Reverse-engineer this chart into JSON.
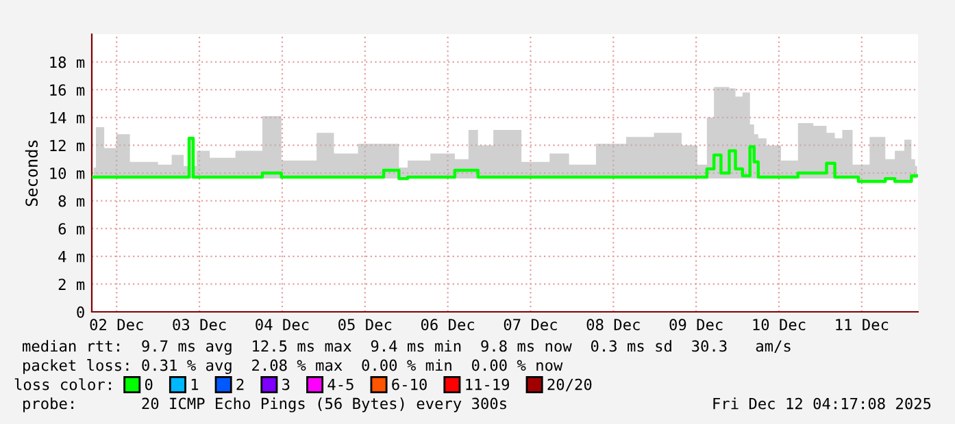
{
  "chart_data": {
    "type": "line",
    "ylabel": "Seconds",
    "legend_title": "loss color:",
    "legend": "bottom",
    "grid": true,
    "xlim": [
      "2025-12-02T04:48",
      "2025-12-12T04:19"
    ],
    "ylim": [
      0,
      20
    ],
    "xticks": [
      {
        "value": "2025-12-02T12:00",
        "label": "02 Dec"
      },
      {
        "value": "2025-12-03T12:00",
        "label": "03 Dec"
      },
      {
        "value": "2025-12-04T12:00",
        "label": "04 Dec"
      },
      {
        "value": "2025-12-05T12:00",
        "label": "05 Dec"
      },
      {
        "value": "2025-12-06T12:00",
        "label": "06 Dec"
      },
      {
        "value": "2025-12-07T12:00",
        "label": "07 Dec"
      },
      {
        "value": "2025-12-08T12:00",
        "label": "08 Dec"
      },
      {
        "value": "2025-12-09T12:00",
        "label": "09 Dec"
      },
      {
        "value": "2025-12-10T12:00",
        "label": "10 Dec"
      },
      {
        "value": "2025-12-11T12:00",
        "label": "11 Dec"
      }
    ],
    "yticks": [
      0,
      {
        "value": 2,
        "label": "2 m"
      },
      {
        "value": 4,
        "label": "4 m"
      },
      {
        "value": 6,
        "label": "6 m"
      },
      {
        "value": 8,
        "label": "8 m"
      },
      {
        "value": 10,
        "label": "10 m"
      },
      {
        "value": 12,
        "label": "12 m"
      },
      {
        "value": 14,
        "label": "14 m"
      },
      {
        "value": 16,
        "label": "16 m"
      },
      {
        "value": 18,
        "label": "18 m"
      }
    ],
    "series": [
      {
        "name": "0",
        "color": "#00ff00",
        "x": [
          "2025-12-02T05:17",
          "2025-12-02T06:43",
          "2025-12-02T10:05",
          "2025-12-02T13:41",
          "2025-12-02T18:00",
          "2025-12-02T22:05",
          "2025-12-03T01:55",
          "2025-12-03T06:00",
          "2025-12-03T08:53",
          "2025-12-03T09:07",
          "2025-12-03T10:05",
          "2025-12-03T10:19",
          "2025-12-03T12:00",
          "2025-12-03T18:00",
          "2025-12-04T02:53",
          "2025-12-04T09:36",
          "2025-12-04T13:55",
          "2025-12-04T19:55",
          "2025-12-05T00:00",
          "2025-12-05T06:00",
          "2025-12-05T13:55",
          "2025-12-05T20:53",
          "2025-12-05T22:48",
          "2025-12-06T01:55",
          "2025-12-06T12:00",
          "2025-12-06T16:05",
          "2025-12-06T19:55",
          "2025-12-06T21:36",
          "2025-12-07T04:48",
          "2025-12-07T13:55",
          "2025-12-07T21:07",
          "2025-12-08T01:12",
          "2025-12-08T12:43",
          "2025-12-08T18:43",
          "2025-12-09T04:48",
          "2025-12-09T10:48",
          "2025-12-09T13:55",
          "2025-12-09T16:19",
          "2025-12-09T18:00",
          "2025-12-09T20:24",
          "2025-12-09T22:48",
          "2025-12-10T00:00",
          "2025-12-10T02:53",
          "2025-12-10T04:19",
          "2025-12-10T05:17",
          "2025-12-10T06:43",
          "2025-12-10T10:05",
          "2025-12-10T15:07",
          "2025-12-10T19:55",
          "2025-12-11T00:00",
          "2025-12-11T03:36",
          "2025-12-11T04:48",
          "2025-12-11T07:55",
          "2025-12-11T10:48",
          "2025-12-11T11:17",
          "2025-12-11T17:17",
          "2025-12-11T20:24",
          "2025-12-11T22:48",
          "2025-12-12T01:55",
          "2025-12-12T02:53",
          "2025-12-12T04:05"
        ],
        "values": [
          9.7,
          9.7,
          9.7,
          9.7,
          9.7,
          9.7,
          9.7,
          9.7,
          9.7,
          12.5,
          12.5,
          9.7,
          9.7,
          9.7,
          9.7,
          10.0,
          9.7,
          9.7,
          9.7,
          9.7,
          9.7,
          10.2,
          9.6,
          9.7,
          9.7,
          10.2,
          10.2,
          9.7,
          9.7,
          9.7,
          9.7,
          9.7,
          9.7,
          9.7,
          9.7,
          9.7,
          9.7,
          10.3,
          11.3,
          10.0,
          11.6,
          10.3,
          9.8,
          11.9,
          10.8,
          9.7,
          9.7,
          9.7,
          10.0,
          10.0,
          10.7,
          9.7,
          9.7,
          9.7,
          9.4,
          9.4,
          9.6,
          9.4,
          9.4,
          9.8,
          9.8
        ],
        "lower": [
          9.6,
          9.6,
          9.6,
          9.6,
          9.6,
          9.6,
          9.6,
          9.6,
          9.6,
          9.6,
          9.6,
          9.6,
          9.6,
          9.6,
          9.6,
          9.6,
          9.6,
          9.6,
          9.6,
          9.6,
          9.6,
          9.6,
          9.5,
          9.6,
          9.6,
          9.6,
          9.6,
          9.6,
          9.6,
          9.6,
          9.6,
          9.6,
          9.6,
          9.6,
          9.6,
          9.6,
          9.6,
          9.6,
          9.6,
          9.6,
          9.6,
          9.6,
          9.6,
          9.6,
          9.6,
          9.6,
          9.6,
          9.6,
          9.6,
          9.6,
          9.6,
          9.6,
          9.6,
          9.6,
          9.3,
          9.3,
          9.5,
          9.3,
          9.3,
          9.6,
          9.6
        ],
        "upper": [
          10.4,
          13.3,
          11.8,
          12.8,
          10.8,
          10.8,
          10.6,
          11.3,
          10.5,
          12.5,
          12.5,
          10.5,
          11.6,
          11.1,
          11.6,
          14.1,
          10.9,
          10.9,
          12.9,
          11.4,
          12.1,
          12.1,
          10.4,
          10.9,
          11.4,
          11.0,
          13.1,
          12.0,
          13.1,
          10.8,
          11.4,
          10.6,
          12.1,
          12.6,
          12.9,
          12.0,
          10.6,
          14.0,
          16.2,
          16.2,
          16.1,
          15.5,
          15.8,
          13.5,
          12.8,
          12.5,
          12.0,
          10.9,
          13.6,
          13.4,
          12.9,
          12.5,
          13.1,
          10.6,
          10.6,
          12.6,
          11.0,
          11.6,
          12.4,
          11.0,
          10.5
        ]
      },
      {
        "name": "1",
        "color": "#00b8ff"
      },
      {
        "name": "2",
        "color": "#0059ff"
      },
      {
        "name": "3",
        "color": "#7e00ff"
      },
      {
        "name": "4-5",
        "color": "#ff00ff"
      },
      {
        "name": "6-10",
        "color": "#ff5500"
      },
      {
        "name": "11-19",
        "color": "#ff0000"
      },
      {
        "name": "20/20",
        "color": "#a10000"
      }
    ],
    "annotations": [
      "median rtt:  9.7 ms avg  12.5 ms max  9.4 ms min  9.8 ms now  0.3 ms sd  30.3   am/s",
      "packet loss: 0.31 % avg  2.08 % max  0.00 % min  0.00 % now",
      "probe:       20 ICMP Echo Pings (56 Bytes) every 300s",
      "Fri Dec 12 04:17:08 2025"
    ]
  }
}
